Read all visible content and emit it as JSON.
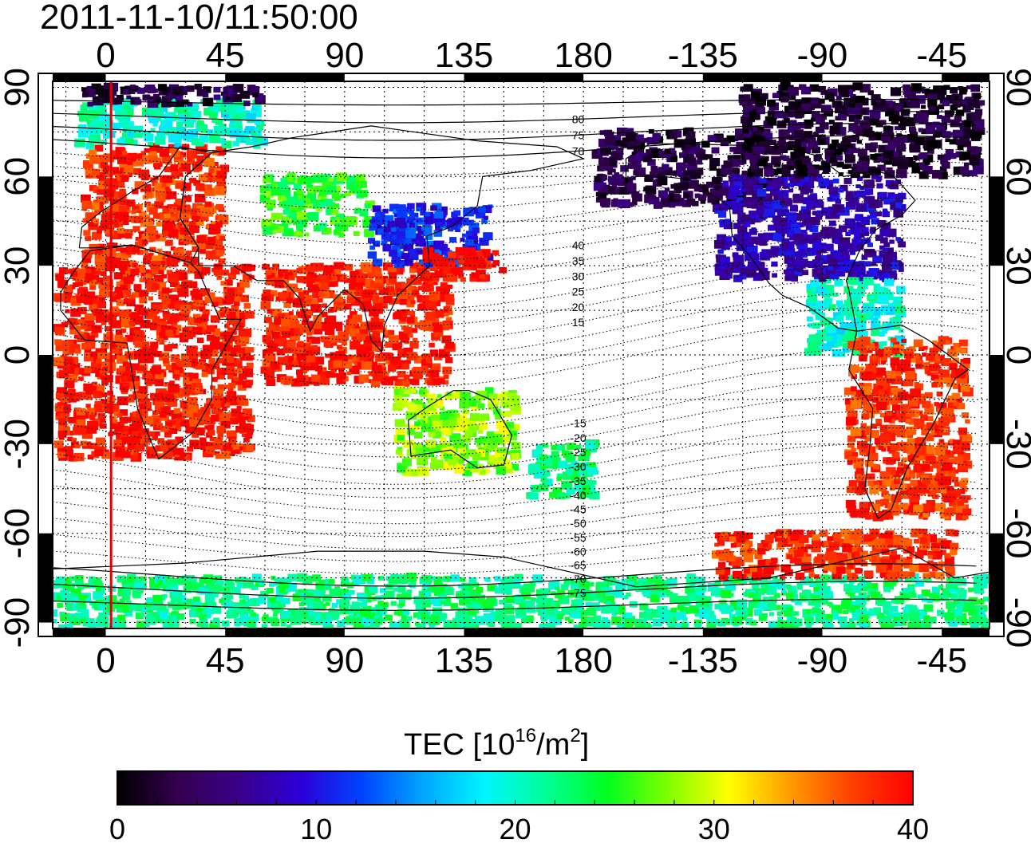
{
  "title": "2011-11-10/11:50:00",
  "map": {
    "projection": "equirectangular",
    "lon_min": -20,
    "lon_max": 333,
    "lat_min": -92,
    "lat_max": 92,
    "grid": true,
    "top_lon_labels": [
      "0",
      "45",
      "90",
      "135",
      "180",
      "-135",
      "-90",
      "-45"
    ],
    "top_lon_values": [
      0,
      45,
      90,
      135,
      180,
      225,
      270,
      315
    ],
    "bottom_lon_labels": [
      "0",
      "45",
      "90",
      "135",
      "180",
      "-135",
      "-90",
      "-45"
    ],
    "left_lat_labels": [
      "90",
      "60",
      "30",
      "0",
      "-30",
      "-60",
      "-90"
    ],
    "right_lat_labels": [
      "90",
      "60",
      "30",
      "0",
      "-30",
      "-60",
      "-90"
    ],
    "lat_values": [
      90,
      60,
      30,
      0,
      -30,
      -60,
      -90
    ],
    "red_meridian_lon": 2,
    "magnetic_lat_labels": [
      "80",
      "75",
      "70",
      "40",
      "35",
      "30",
      "25",
      "20",
      "15",
      "-15",
      "-20",
      "-25",
      "-30",
      "-35",
      "-40",
      "-45",
      "-50",
      "-55",
      "-60",
      "-65",
      "-70",
      "-75"
    ],
    "magnetic_lat_values": [
      80,
      75,
      70,
      40,
      35,
      30,
      25,
      20,
      15,
      -15,
      -20,
      -25,
      -30,
      -35,
      -40,
      -45,
      -50,
      -55,
      -60,
      -65,
      -70,
      -75
    ],
    "tec_regions": [
      {
        "name": "europe",
        "lon": [
          -8,
          45
        ],
        "lat": [
          30,
          70
        ],
        "tec": 38
      },
      {
        "name": "arctic-europe",
        "lon": [
          -10,
          60
        ],
        "lat": [
          70,
          85
        ],
        "tec": 20
      },
      {
        "name": "north-pole",
        "lon": [
          -10,
          60
        ],
        "lat": [
          84,
          90
        ],
        "tec": 3
      },
      {
        "name": "africa",
        "lon": [
          -18,
          55
        ],
        "lat": [
          -35,
          30
        ],
        "tec": 39
      },
      {
        "name": "south-asia",
        "lon": [
          60,
          130
        ],
        "lat": [
          -10,
          30
        ],
        "tec": 39
      },
      {
        "name": "central-asia",
        "lon": [
          60,
          100
        ],
        "lat": [
          40,
          60
        ],
        "tec": 25
      },
      {
        "name": "east-asia",
        "lon": [
          100,
          145
        ],
        "lat": [
          30,
          50
        ],
        "tec": 11
      },
      {
        "name": "japan",
        "lon": [
          120,
          150
        ],
        "lat": [
          25,
          35
        ],
        "tec": 40
      },
      {
        "name": "australia",
        "lon": [
          110,
          155
        ],
        "lat": [
          -40,
          -12
        ],
        "tec": 28
      },
      {
        "name": "new-zealand",
        "lon": [
          160,
          185
        ],
        "lat": [
          -48,
          -30
        ],
        "tec": 22
      },
      {
        "name": "alaska",
        "lon": [
          185,
          250
        ],
        "lat": [
          50,
          75
        ],
        "tec": 3
      },
      {
        "name": "north-america",
        "lon": [
          230,
          300
        ],
        "lat": [
          25,
          60
        ],
        "tec": 8
      },
      {
        "name": "canada-north",
        "lon": [
          240,
          330
        ],
        "lat": [
          60,
          90
        ],
        "tec": 2
      },
      {
        "name": "central-america",
        "lon": [
          265,
          300
        ],
        "lat": [
          0,
          25
        ],
        "tec": 20
      },
      {
        "name": "south-america",
        "lon": [
          280,
          325
        ],
        "lat": [
          -55,
          5
        ],
        "tec": 38
      },
      {
        "name": "antarctica",
        "lon": [
          -20,
          333
        ],
        "lat": [
          -92,
          -75
        ],
        "tec": 22
      },
      {
        "name": "antarctic-peninsula",
        "lon": [
          230,
          320
        ],
        "lat": [
          -75,
          -60
        ],
        "tec": 38
      }
    ]
  },
  "colorbar": {
    "title": "TEC  [10",
    "title_sup": "16",
    "title_mid": "/m",
    "title_sup2": "2",
    "title_end": "]",
    "min": 0,
    "max": 40,
    "tick_labels": [
      "0",
      "10",
      "20",
      "30",
      "40"
    ],
    "tick_values": [
      0,
      10,
      20,
      30,
      40
    ],
    "colors": [
      "#000000",
      "#33004f",
      "#3a008a",
      "#2b00d8",
      "#0044ff",
      "#00a6ff",
      "#00f5ff",
      "#00ff96",
      "#00ff20",
      "#7fff00",
      "#ffff00",
      "#ff9a00",
      "#ff4000",
      "#ff0000"
    ]
  }
}
